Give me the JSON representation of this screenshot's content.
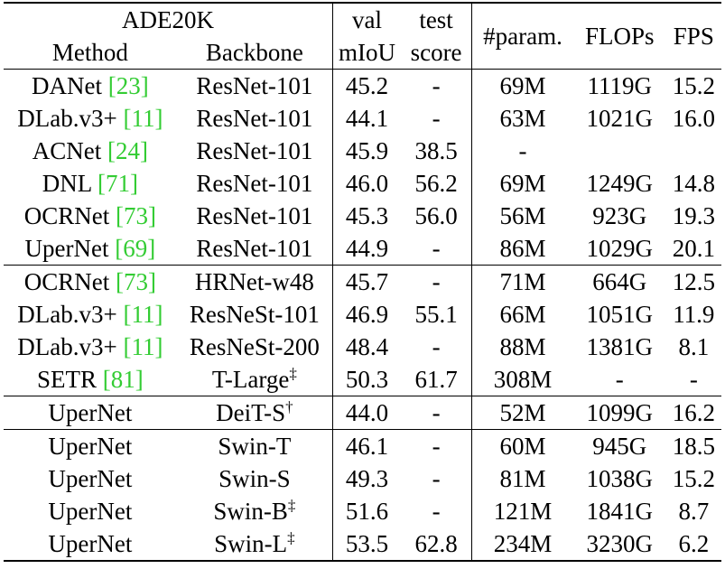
{
  "header": {
    "dataset": "ADE20K",
    "method": "Method",
    "backbone": "Backbone",
    "val_top": "val",
    "val_bottom": "mIoU",
    "test_top": "test",
    "test_bottom": "score",
    "param": "#param.",
    "flops": "FLOPs",
    "fps": "FPS"
  },
  "rows": [
    {
      "method": "DANet",
      "cite": "23",
      "backbone": "ResNet-101",
      "sup": "",
      "val": "45.2",
      "test": "-",
      "param": "69M",
      "flops": "1119G",
      "fps": "15.2"
    },
    {
      "method": "DLab.v3+",
      "cite": "11",
      "backbone": "ResNet-101",
      "sup": "",
      "val": "44.1",
      "test": "-",
      "param": "63M",
      "flops": "1021G",
      "fps": "16.0"
    },
    {
      "method": "ACNet",
      "cite": "24",
      "backbone": "ResNet-101",
      "sup": "",
      "val": "45.9",
      "test": "38.5",
      "param": "-",
      "flops": "",
      "fps": ""
    },
    {
      "method": "DNL",
      "cite": "71",
      "backbone": "ResNet-101",
      "sup": "",
      "val": "46.0",
      "test": "56.2",
      "param": "69M",
      "flops": "1249G",
      "fps": "14.8"
    },
    {
      "method": "OCRNet",
      "cite": "73",
      "backbone": "ResNet-101",
      "sup": "",
      "val": "45.3",
      "test": "56.0",
      "param": "56M",
      "flops": "923G",
      "fps": "19.3"
    },
    {
      "method": "UperNet",
      "cite": "69",
      "backbone": "ResNet-101",
      "sup": "",
      "val": "44.9",
      "test": "-",
      "param": "86M",
      "flops": "1029G",
      "fps": "20.1"
    },
    {
      "method": "OCRNet",
      "cite": "73",
      "backbone": "HRNet-w48",
      "sup": "",
      "val": "45.7",
      "test": "-",
      "param": "71M",
      "flops": "664G",
      "fps": "12.5"
    },
    {
      "method": "DLab.v3+",
      "cite": "11",
      "backbone": "ResNeSt-101",
      "sup": "",
      "val": "46.9",
      "test": "55.1",
      "param": "66M",
      "flops": "1051G",
      "fps": "11.9"
    },
    {
      "method": "DLab.v3+",
      "cite": "11",
      "backbone": "ResNeSt-200",
      "sup": "",
      "val": "48.4",
      "test": "-",
      "param": "88M",
      "flops": "1381G",
      "fps": "8.1"
    },
    {
      "method": "SETR",
      "cite": "81",
      "backbone": "T-Large",
      "sup": "‡",
      "val": "50.3",
      "test": "61.7",
      "param": "308M",
      "flops": "-",
      "fps": "-"
    },
    {
      "method": "UperNet",
      "cite": "",
      "backbone": "DeiT-S",
      "sup": "†",
      "val": "44.0",
      "test": "-",
      "param": "52M",
      "flops": "1099G",
      "fps": "16.2"
    },
    {
      "method": "UperNet",
      "cite": "",
      "backbone": "Swin-T",
      "sup": "",
      "val": "46.1",
      "test": "-",
      "param": "60M",
      "flops": "945G",
      "fps": "18.5"
    },
    {
      "method": "UperNet",
      "cite": "",
      "backbone": "Swin-S",
      "sup": "",
      "val": "49.3",
      "test": "-",
      "param": "81M",
      "flops": "1038G",
      "fps": "15.2"
    },
    {
      "method": "UperNet",
      "cite": "",
      "backbone": "Swin-B",
      "sup": "‡",
      "val": "51.6",
      "test": "-",
      "param": "121M",
      "flops": "1841G",
      "fps": "8.7"
    },
    {
      "method": "UperNet",
      "cite": "",
      "backbone": "Swin-L",
      "sup": "‡",
      "val": "53.5",
      "test": "62.8",
      "param": "234M",
      "flops": "3230G",
      "fps": "6.2",
      "bold_val": true,
      "bold_test": true
    }
  ],
  "group_starts": [
    0,
    6,
    10,
    11
  ]
}
